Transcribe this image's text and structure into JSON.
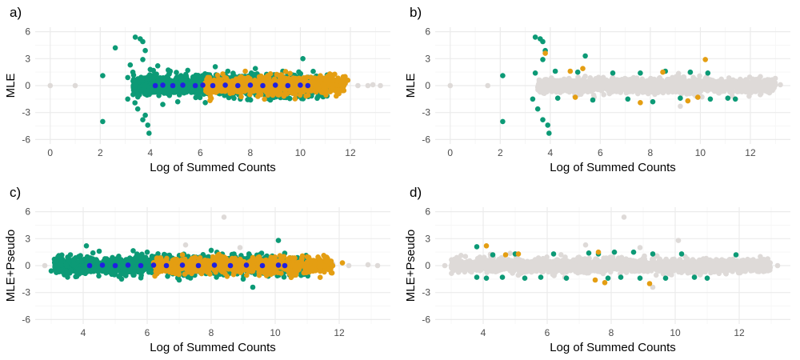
{
  "colors": {
    "background": "#ffffff",
    "grid_major": "#ebebeb",
    "grid_minor": "#f5f5f5",
    "grey_points": "#dedad8",
    "green_points": "#0c9a76",
    "orange_points": "#e49e12",
    "blue_points": "#2020e0"
  },
  "chart_data": [
    {
      "panel": "a)",
      "type": "scatter",
      "xlabel": "Log of Summed Counts",
      "ylabel": "MLE",
      "xlim": [
        -0.6,
        13.6
      ],
      "ylim": [
        -6.5,
        6.5
      ],
      "xticks": [
        "0",
        "2",
        "4",
        "6",
        "8",
        "10",
        "12"
      ],
      "yticks": [
        "6",
        "3",
        "0",
        "-3",
        "-6"
      ],
      "grid": true,
      "series": [
        {
          "color": "grey",
          "description": "low and high count points",
          "points": [
            [
              0,
              0
            ],
            [
              1,
              0
            ],
            [
              10.6,
              0.1
            ],
            [
              11.3,
              0
            ],
            [
              11.8,
              0.2
            ],
            [
              12.3,
              0
            ],
            [
              12.7,
              0
            ],
            [
              12.9,
              0.1
            ],
            [
              13.2,
              0
            ]
          ]
        },
        {
          "color": "green",
          "description": "dense band from x 3.3 to 11.1, y mostly between -1.5 and 1.8",
          "points": [
            [
              2.1,
              1.1
            ],
            [
              2.1,
              -4
            ],
            [
              2.6,
              4.2
            ],
            [
              3.1,
              -1.5
            ],
            [
              3.1,
              0.9
            ],
            [
              3.2,
              2.3
            ],
            [
              3.4,
              5.4
            ],
            [
              3.6,
              5.2
            ],
            [
              3.7,
              4.9
            ],
            [
              3.8,
              3.9
            ],
            [
              3.7,
              2.9
            ],
            [
              3.5,
              -2.6
            ],
            [
              3.7,
              -3.8
            ],
            [
              3.9,
              -4.4
            ],
            [
              3.95,
              -5.3
            ],
            [
              3.8,
              -3.3
            ],
            [
              4,
              1.8
            ],
            [
              4.3,
              2.2
            ],
            [
              4.5,
              -2.1
            ],
            [
              4.8,
              1.6
            ],
            [
              5.1,
              -1.8
            ],
            [
              5.5,
              1.7
            ],
            [
              6.2,
              -1.9
            ],
            [
              6.6,
              2.1
            ],
            [
              7.1,
              1.6
            ],
            [
              7.6,
              -1.5
            ],
            [
              8.2,
              1.9
            ],
            [
              8.8,
              -1.6
            ],
            [
              9.3,
              1.6
            ],
            [
              10.1,
              3
            ],
            [
              10.4,
              -0.8
            ],
            [
              10.8,
              0.5
            ]
          ]
        },
        {
          "color": "orange",
          "description": "band from x 6.2 to 11.9, y mostly between -1.3 and 1.6",
          "points": [
            [
              6.3,
              0.9
            ],
            [
              6.5,
              -0.5
            ],
            [
              6.9,
              1.3
            ],
            [
              7.3,
              -0.8
            ],
            [
              7.8,
              1.6
            ],
            [
              8.3,
              -1.2
            ],
            [
              8.7,
              1.1
            ],
            [
              9.2,
              -0.9
            ],
            [
              9.8,
              0.8
            ],
            [
              10.3,
              -0.6
            ],
            [
              11.1,
              0.4
            ],
            [
              11.5,
              0.5
            ],
            [
              11.9,
              0.6
            ]
          ]
        },
        {
          "color": "blue",
          "description": "points near y = 0 from x 4.0 to 10.3",
          "points": [
            [
              4.2,
              0
            ],
            [
              4.5,
              0.05
            ],
            [
              4.9,
              0
            ],
            [
              5.3,
              0.05
            ],
            [
              5.8,
              0
            ],
            [
              6.1,
              0.05
            ],
            [
              6.5,
              0
            ],
            [
              7,
              0.05
            ],
            [
              7.5,
              0
            ],
            [
              8,
              0.05
            ],
            [
              8.5,
              0
            ],
            [
              9,
              0.05
            ],
            [
              9.5,
              0
            ],
            [
              10,
              0.05
            ],
            [
              10.3,
              0
            ]
          ]
        }
      ]
    },
    {
      "panel": "b)",
      "type": "scatter",
      "xlabel": "Log of Summed Counts",
      "ylabel": "MLE",
      "xlim": [
        -0.6,
        13.6
      ],
      "ylim": [
        -6.5,
        6.5
      ],
      "xticks": [
        "0",
        "2",
        "4",
        "6",
        "8",
        "10",
        "12"
      ],
      "yticks": [
        "6",
        "3",
        "0",
        "-3",
        "-6"
      ],
      "grid": true,
      "series": [
        {
          "color": "grey",
          "description": "dense band from x 3.6 to 13.2, y mostly between -1 and 1",
          "points": [
            [
              0,
              0
            ],
            [
              1.5,
              0
            ],
            [
              3.7,
              0.4
            ],
            [
              4.5,
              -0.6
            ],
            [
              6,
              0.8
            ],
            [
              7.5,
              -0.9
            ],
            [
              9,
              0.7
            ],
            [
              9.2,
              -2.3
            ],
            [
              10.2,
              0.8
            ],
            [
              11,
              0.4
            ],
            [
              12,
              0.3
            ],
            [
              12.9,
              0.2
            ],
            [
              13.2,
              0.1
            ]
          ]
        },
        {
          "color": "green",
          "description": "points outside the grey band, clustered near y = 1.5 and y = -1.5",
          "points": [
            [
              2.1,
              1.1
            ],
            [
              2.1,
              -4
            ],
            [
              3.4,
              5.4
            ],
            [
              3.6,
              5.2
            ],
            [
              3.7,
              4.9
            ],
            [
              3.8,
              3.9
            ],
            [
              3.7,
              2.9
            ],
            [
              3.5,
              -2.6
            ],
            [
              3.7,
              -3.8
            ],
            [
              3.9,
              -4.4
            ],
            [
              3.95,
              -5.3
            ],
            [
              3.3,
              -1.5
            ],
            [
              3.4,
              1.4
            ],
            [
              4.2,
              1.6
            ],
            [
              4.3,
              -1.4
            ],
            [
              5.1,
              1.5
            ],
            [
              5.4,
              3.3
            ],
            [
              5.7,
              -1.6
            ],
            [
              6.5,
              1.4
            ],
            [
              7.1,
              -1.5
            ],
            [
              7.6,
              1.4
            ],
            [
              8.1,
              -1.8
            ],
            [
              8.6,
              1.6
            ],
            [
              9.2,
              -1.4
            ],
            [
              9.6,
              1.5
            ],
            [
              10.3,
              1.4
            ],
            [
              10.4,
              -1.5
            ],
            [
              11.1,
              -1.4
            ],
            [
              11.4,
              -1.5
            ]
          ]
        },
        {
          "color": "orange",
          "description": "sparse points outside the grey band",
          "points": [
            [
              3.8,
              3.6
            ],
            [
              4.8,
              1.6
            ],
            [
              5,
              -1.3
            ],
            [
              5.3,
              1.9
            ],
            [
              7.6,
              -1.9
            ],
            [
              8.5,
              1.5
            ],
            [
              9.5,
              -1.7
            ],
            [
              9.9,
              -1.3
            ],
            [
              10.2,
              2.9
            ]
          ]
        }
      ]
    },
    {
      "panel": "c)",
      "type": "scatter",
      "xlabel": "Log of Summed Counts",
      "ylabel": "MLE+Pseudo",
      "xlim": [
        2.5,
        13.6
      ],
      "ylim": [
        -6.5,
        6.5
      ],
      "xticks": [
        "4",
        "6",
        "8",
        "10",
        "12"
      ],
      "yticks": [
        "6",
        "3",
        "0",
        "-3",
        "-6"
      ],
      "grid": true,
      "series": [
        {
          "color": "grey",
          "description": "scattered points at the low and high ends",
          "points": [
            [
              2.8,
              0
            ],
            [
              8.4,
              5.4
            ],
            [
              8.9,
              2
            ],
            [
              7.2,
              2.3
            ],
            [
              10.7,
              0.3
            ],
            [
              11.3,
              0
            ],
            [
              11.8,
              0.2
            ],
            [
              12.3,
              0
            ],
            [
              12.9,
              0.1
            ],
            [
              13.2,
              0
            ]
          ]
        },
        {
          "color": "green",
          "description": "dense band from x 3.0 to 11.4, y mostly between -1.4 and 1.4",
          "points": [
            [
              3,
              -0.6
            ],
            [
              3.1,
              0.7
            ],
            [
              3.3,
              0.1
            ],
            [
              3.6,
              1.2
            ],
            [
              3.8,
              -1.2
            ],
            [
              4.1,
              2.2
            ],
            [
              4.5,
              1.6
            ],
            [
              5.2,
              -1.5
            ],
            [
              6,
              1.5
            ],
            [
              7,
              -1.6
            ],
            [
              8,
              1.7
            ],
            [
              9,
              -1.5
            ],
            [
              9.3,
              -2.4
            ],
            [
              10.1,
              2.8
            ],
            [
              10.8,
              -0.7
            ],
            [
              11.2,
              0.5
            ]
          ]
        },
        {
          "color": "orange",
          "description": "band from x 6.2 to 12.1, y mostly between -1.1 and 1.1",
          "points": [
            [
              6.3,
              0.8
            ],
            [
              6.7,
              -0.7
            ],
            [
              7.1,
              1.2
            ],
            [
              7.7,
              -0.9
            ],
            [
              8.2,
              1.1
            ],
            [
              8.7,
              -1
            ],
            [
              9.3,
              0.9
            ],
            [
              9.8,
              -0.6
            ],
            [
              10.4,
              0.7
            ],
            [
              11,
              0.4
            ],
            [
              11.6,
              0.5
            ],
            [
              12.1,
              0.3
            ]
          ]
        },
        {
          "color": "blue",
          "description": "points near y = 0 from x 4.0 to 10.3",
          "points": [
            [
              4.2,
              0
            ],
            [
              4.6,
              0.05
            ],
            [
              5,
              0
            ],
            [
              5.4,
              0.05
            ],
            [
              5.8,
              0
            ],
            [
              6.2,
              0.05
            ],
            [
              6.6,
              0
            ],
            [
              7.1,
              0.05
            ],
            [
              7.6,
              0
            ],
            [
              8.1,
              0.05
            ],
            [
              8.6,
              0
            ],
            [
              9.1,
              0.05
            ],
            [
              9.6,
              0
            ],
            [
              10.1,
              0.05
            ],
            [
              10.3,
              0
            ]
          ]
        }
      ]
    },
    {
      "panel": "d)",
      "type": "scatter",
      "xlabel": "Log of Summed Counts",
      "ylabel": "MLE+Pseudo",
      "xlim": [
        2.5,
        13.6
      ],
      "ylim": [
        -6.5,
        6.5
      ],
      "xticks": [
        "4",
        "6",
        "8",
        "10",
        "12"
      ],
      "yticks": [
        "6",
        "3",
        "0",
        "-3",
        "-6"
      ],
      "grid": true,
      "series": [
        {
          "color": "grey",
          "description": "dense band from x 3.0 to 13.2, y mostly between -1 and 1",
          "points": [
            [
              2.8,
              0
            ],
            [
              8.4,
              5.4
            ],
            [
              8.9,
              2
            ],
            [
              10.1,
              2.8
            ],
            [
              9.3,
              -2.4
            ],
            [
              7.2,
              2.3
            ],
            [
              5,
              0.6
            ],
            [
              7,
              -0.7
            ],
            [
              9,
              0.8
            ],
            [
              11,
              0.3
            ],
            [
              12,
              0.2
            ],
            [
              12.9,
              0.1
            ],
            [
              13.2,
              0
            ]
          ]
        },
        {
          "color": "green",
          "description": "points at the edges of the grey band near y = 1.3 and y = -1.3",
          "points": [
            [
              3.8,
              2.1
            ],
            [
              3.8,
              -1.3
            ],
            [
              4.1,
              -1.4
            ],
            [
              4.3,
              1.2
            ],
            [
              4.6,
              -1.3
            ],
            [
              5,
              1.3
            ],
            [
              5.3,
              -1.4
            ],
            [
              5.8,
              -1.3
            ],
            [
              6.2,
              1.3
            ],
            [
              6.6,
              -1.4
            ],
            [
              7.3,
              1.4
            ],
            [
              7.6,
              1.3
            ],
            [
              7.9,
              -1.4
            ],
            [
              8.1,
              1.5
            ],
            [
              8.3,
              -1.3
            ],
            [
              8.7,
              1.5
            ],
            [
              8.9,
              -1.4
            ],
            [
              9.3,
              1.3
            ],
            [
              9.7,
              -1.4
            ],
            [
              10.2,
              1.3
            ],
            [
              10.6,
              -1.3
            ],
            [
              11,
              -1.4
            ],
            [
              11.9,
              1.2
            ]
          ]
        },
        {
          "color": "orange",
          "description": "sparse points at the edges of the grey band",
          "points": [
            [
              4.1,
              2.2
            ],
            [
              4.7,
              1.2
            ],
            [
              5.1,
              1.3
            ],
            [
              7.6,
              1.5
            ],
            [
              7.5,
              -1.6
            ],
            [
              7.8,
              -1.9
            ],
            [
              9.2,
              -2
            ]
          ]
        }
      ]
    }
  ]
}
